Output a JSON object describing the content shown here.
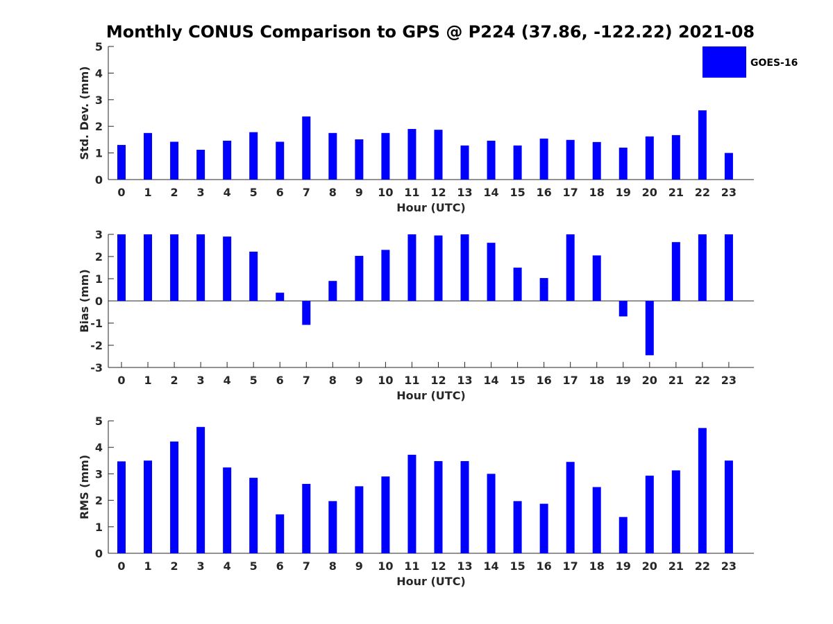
{
  "chart_data": {
    "type": "bar",
    "title": "Monthly CONUS Comparison to GPS @ P224 (37.86, -122.22) 2021-08",
    "legend": {
      "label": "GOES-16",
      "color": "#0000ff",
      "placement": "top-right"
    },
    "bar_color": "#0000ff",
    "categories": [
      "0",
      "1",
      "2",
      "3",
      "4",
      "5",
      "6",
      "7",
      "8",
      "9",
      "10",
      "11",
      "12",
      "13",
      "14",
      "15",
      "16",
      "17",
      "18",
      "19",
      "20",
      "21",
      "22",
      "23"
    ],
    "panels": [
      {
        "name": "std-dev",
        "xlabel": "Hour (UTC)",
        "ylabel": "Std. Dev. (mm)",
        "ylim": [
          0,
          5
        ],
        "yticks": [
          "0",
          "1",
          "2",
          "3",
          "4",
          "5"
        ],
        "zero_line": false,
        "values": [
          1.3,
          1.75,
          1.42,
          1.12,
          1.46,
          1.78,
          1.42,
          2.37,
          1.75,
          1.51,
          1.75,
          1.9,
          1.87,
          1.28,
          1.46,
          1.28,
          1.54,
          1.49,
          1.41,
          1.2,
          1.62,
          1.67,
          2.6,
          1.0
        ]
      },
      {
        "name": "bias",
        "xlabel": "Hour (UTC)",
        "ylabel": "Bias (mm)",
        "ylim": [
          -3,
          3
        ],
        "yticks": [
          "-3",
          "-2",
          "-1",
          "0",
          "1",
          "2",
          "3"
        ],
        "zero_line": true,
        "values": [
          3.0,
          3.0,
          3.0,
          3.0,
          2.9,
          2.22,
          0.37,
          -1.08,
          0.9,
          2.03,
          2.3,
          3.0,
          2.95,
          3.0,
          2.62,
          1.5,
          1.03,
          3.0,
          2.05,
          -0.7,
          -2.45,
          2.65,
          3.0,
          3.0
        ]
      },
      {
        "name": "rms",
        "xlabel": "Hour (UTC)",
        "ylabel": "RMS (mm)",
        "ylim": [
          0,
          5
        ],
        "yticks": [
          "0",
          "1",
          "2",
          "3",
          "4",
          "5"
        ],
        "zero_line": false,
        "values": [
          3.47,
          3.5,
          4.22,
          4.77,
          3.24,
          2.85,
          1.47,
          2.62,
          1.97,
          2.53,
          2.9,
          3.72,
          3.48,
          3.48,
          3.0,
          1.97,
          1.87,
          3.45,
          2.5,
          1.37,
          2.93,
          3.13,
          4.73,
          3.5
        ]
      }
    ]
  }
}
